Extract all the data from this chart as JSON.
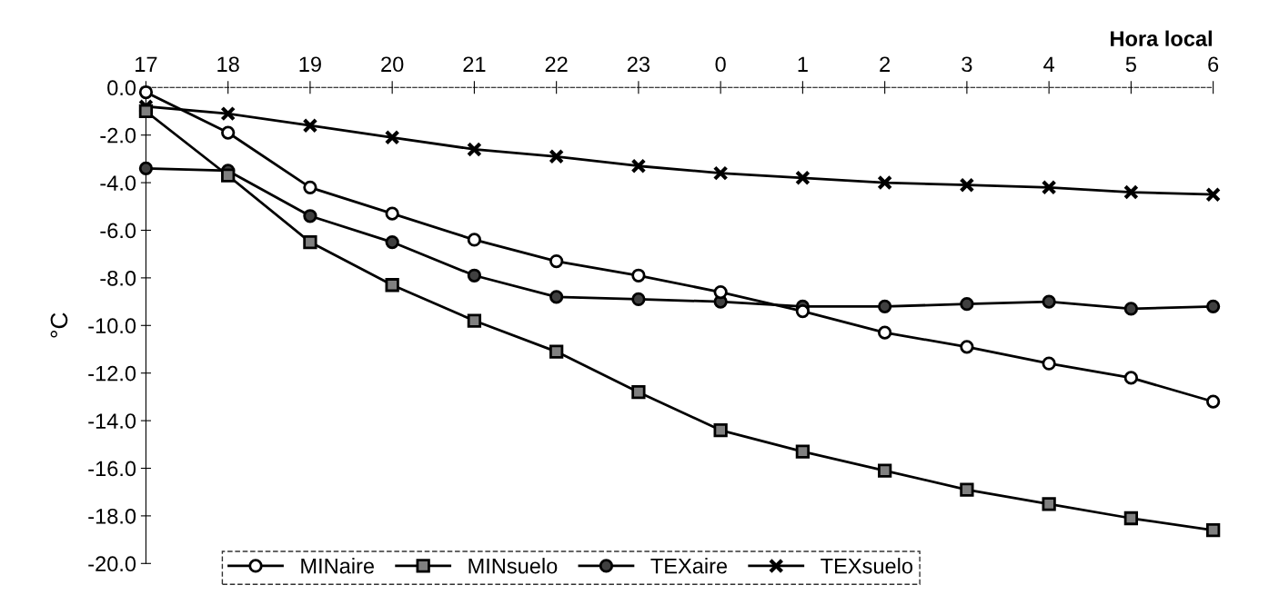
{
  "chart_data": {
    "type": "line",
    "xlabel": "Hora local",
    "ylabel": "°C",
    "categories": [
      "17",
      "18",
      "19",
      "20",
      "21",
      "22",
      "23",
      "0",
      "1",
      "2",
      "3",
      "4",
      "5",
      "6"
    ],
    "series": [
      {
        "name": "MINaire",
        "color": "#ffffff",
        "marker": "circle",
        "values": [
          -0.2,
          -1.9,
          -4.2,
          -5.3,
          -6.4,
          -7.3,
          -7.9,
          -8.6,
          -9.4,
          -10.3,
          -10.9,
          -11.6,
          -12.2,
          -13.2
        ]
      },
      {
        "name": "MINsuelo",
        "color": "#808080",
        "marker": "square",
        "values": [
          -1.0,
          -3.7,
          -6.5,
          -8.3,
          -9.8,
          -11.1,
          -12.8,
          -14.4,
          -15.3,
          -16.1,
          -16.9,
          -17.5,
          -18.1,
          -18.6
        ]
      },
      {
        "name": "TEXaire",
        "color": "#404040",
        "marker": "circle",
        "values": [
          -3.4,
          -3.5,
          -5.4,
          -6.5,
          -7.9,
          -8.8,
          -8.9,
          -9.0,
          -9.2,
          -9.2,
          -9.1,
          -9.0,
          -9.3,
          -9.2
        ]
      },
      {
        "name": "TEXsuelo",
        "color": "#000000",
        "marker": "cross",
        "values": [
          -0.8,
          -1.1,
          -1.6,
          -2.1,
          -2.6,
          -2.9,
          -3.3,
          -3.6,
          -3.8,
          -4.0,
          -4.1,
          -4.2,
          -4.4,
          -4.5
        ]
      }
    ],
    "ylim": [
      -20,
      0
    ],
    "yticks": [
      {
        "value": 0,
        "label": "0.0"
      },
      {
        "value": -2,
        "label": "-2.0"
      },
      {
        "value": -4,
        "label": "-4.0"
      },
      {
        "value": -6,
        "label": "-6.0"
      },
      {
        "value": -8,
        "label": "-8.0"
      },
      {
        "value": -10,
        "label": "-10.0"
      },
      {
        "value": -12,
        "label": "-12.0"
      },
      {
        "value": -14,
        "label": "-14.0"
      },
      {
        "value": -16,
        "label": "-16.0"
      },
      {
        "value": -18,
        "label": "-18.0"
      },
      {
        "value": -20,
        "label": "-20.0"
      }
    ],
    "grid": false,
    "legend": "bottom",
    "line_style": "solid"
  }
}
